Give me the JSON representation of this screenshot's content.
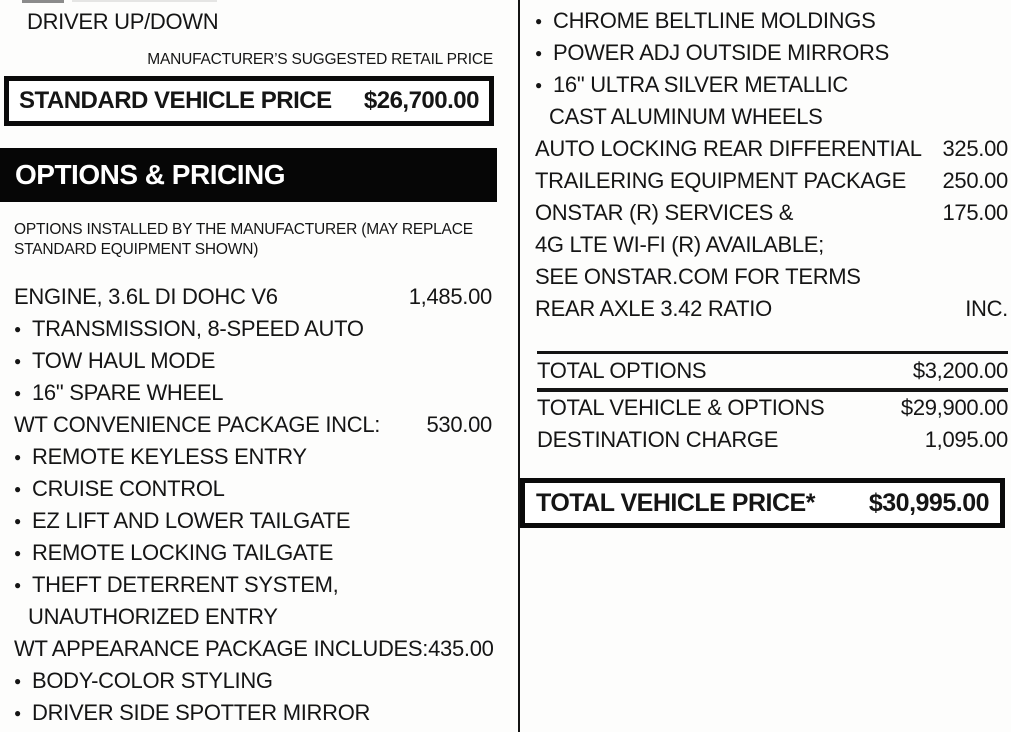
{
  "colors": {
    "ink": "#151515",
    "bar_bg": "#060606",
    "bar_text": "#ffffff"
  },
  "header": {
    "top_item": "DRIVER UP/DOWN",
    "msrp_caption": "MANUFACTURER’S SUGGESTED RETAIL PRICE",
    "standard_price_label": "STANDARD VEHICLE PRICE",
    "standard_price_value": "$26,700.00"
  },
  "options_section": {
    "title": "OPTIONS & PRICING",
    "note_line1": "OPTIONS INSTALLED BY THE MANUFACTURER (MAY REPLACE",
    "note_line2": "STANDARD EQUIPMENT SHOWN)"
  },
  "left_items": [
    {
      "text": "ENGINE, 3.6L DI DOHC V6",
      "price": "1,485.00",
      "bullet": false,
      "indent": false
    },
    {
      "text": "TRANSMISSION, 8-SPEED AUTO",
      "price": "",
      "bullet": true,
      "indent": false
    },
    {
      "text": "TOW HAUL MODE",
      "price": "",
      "bullet": true,
      "indent": false
    },
    {
      "text": "16\" SPARE WHEEL",
      "price": "",
      "bullet": true,
      "indent": false
    },
    {
      "text": "WT CONVENIENCE PACKAGE INCL:",
      "price": "530.00",
      "bullet": false,
      "indent": false
    },
    {
      "text": "REMOTE KEYLESS ENTRY",
      "price": "",
      "bullet": true,
      "indent": false
    },
    {
      "text": "CRUISE CONTROL",
      "price": "",
      "bullet": true,
      "indent": false
    },
    {
      "text": "EZ LIFT AND LOWER TAILGATE",
      "price": "",
      "bullet": true,
      "indent": false
    },
    {
      "text": "REMOTE LOCKING TAILGATE",
      "price": "",
      "bullet": true,
      "indent": false
    },
    {
      "text": "THEFT DETERRENT SYSTEM,",
      "price": "",
      "bullet": true,
      "indent": false
    },
    {
      "text": "UNAUTHORIZED ENTRY",
      "price": "",
      "bullet": false,
      "indent": true
    },
    {
      "text": "WT APPEARANCE PACKAGE INCLUDES:",
      "price": "435.00",
      "bullet": false,
      "indent": false
    },
    {
      "text": "BODY-COLOR STYLING",
      "price": "",
      "bullet": true,
      "indent": false
    },
    {
      "text": "DRIVER SIDE SPOTTER MIRROR",
      "price": "",
      "bullet": true,
      "indent": false
    }
  ],
  "right_items": [
    {
      "text": "CHROME BELTLINE MOLDINGS",
      "price": "",
      "bullet": true,
      "indent": false
    },
    {
      "text": "POWER ADJ OUTSIDE MIRRORS",
      "price": "",
      "bullet": true,
      "indent": false
    },
    {
      "text": "16\" ULTRA SILVER METALLIC",
      "price": "",
      "bullet": true,
      "indent": false
    },
    {
      "text": "CAST ALUMINUM WHEELS",
      "price": "",
      "bullet": false,
      "indent": true
    },
    {
      "text": "AUTO LOCKING REAR DIFFERENTIAL",
      "price": "325.00",
      "bullet": false,
      "indent": false
    },
    {
      "text": "TRAILERING EQUIPMENT PACKAGE",
      "price": "250.00",
      "bullet": false,
      "indent": false
    },
    {
      "text": "ONSTAR (R) SERVICES &",
      "price": "175.00",
      "bullet": false,
      "indent": false
    },
    {
      "text": "4G LTE WI-FI (R) AVAILABLE;",
      "price": "",
      "bullet": false,
      "indent": false
    },
    {
      "text": "SEE ONSTAR.COM FOR TERMS",
      "price": "",
      "bullet": false,
      "indent": false
    },
    {
      "text": "REAR AXLE 3.42 RATIO",
      "price": "INC.",
      "bullet": false,
      "indent": false
    }
  ],
  "totals": [
    {
      "label": "TOTAL OPTIONS",
      "value": "$3,200.00"
    },
    {
      "label": "TOTAL VEHICLE & OPTIONS",
      "value": "$29,900.00"
    },
    {
      "label": "DESTINATION CHARGE",
      "value": "1,095.00"
    }
  ],
  "total_box": {
    "label": "TOTAL VEHICLE PRICE*",
    "value": "$30,995.00"
  }
}
